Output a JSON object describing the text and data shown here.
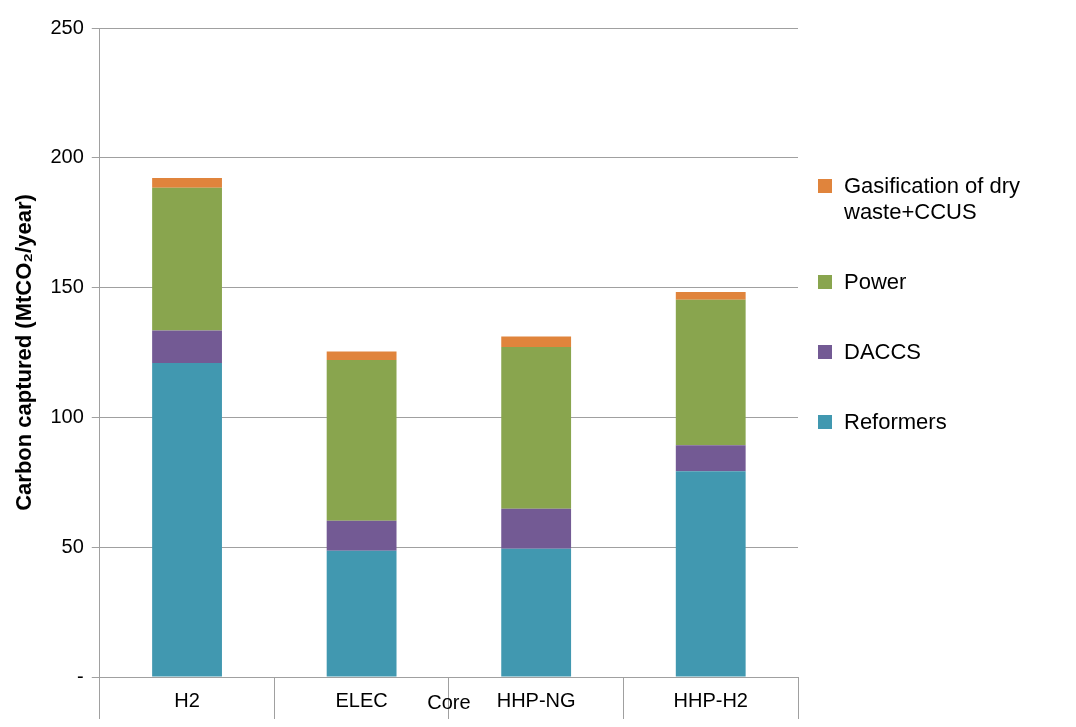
{
  "chart_data": {
    "type": "bar",
    "stacked": true,
    "ylabel": "Carbon captured (MtCO₂/year)",
    "xlabel": "Core",
    "categories": [
      "H2",
      "ELEC",
      "HHP-NG",
      "HHP-H2"
    ],
    "series": [
      {
        "name": "Reformers",
        "color": "#4198b0",
        "values": [
          121,
          48.6,
          49.4,
          79.3
        ]
      },
      {
        "name": "DACCS",
        "color": "#735a94",
        "values": [
          12.5,
          11.6,
          15.4,
          10
        ]
      },
      {
        "name": "Power",
        "color": "#89a54e",
        "values": [
          55,
          61.9,
          62.3,
          56
        ]
      },
      {
        "name": "Gasification of dry waste+CCUS",
        "color": "#e0843c",
        "values": [
          3.7,
          3.3,
          4.1,
          3
        ]
      }
    ],
    "ylim": [
      0,
      250
    ],
    "yticks": [
      {
        "value": 0,
        "label": "-"
      },
      50,
      100,
      150,
      200,
      250
    ],
    "grid": "y",
    "legend": "right"
  }
}
